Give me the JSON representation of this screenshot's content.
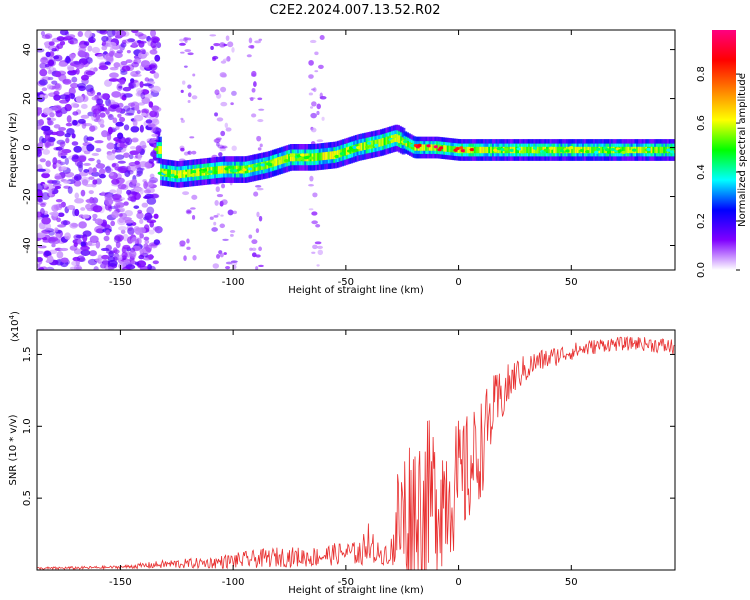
{
  "title": "C2E2.2024.007.13.52.R02",
  "chart_data": [
    {
      "type": "heatmap",
      "xlabel": "Height of straight line (km)",
      "ylabel": "Frequency (Hz)",
      "xlim": [
        -187,
        96
      ],
      "ylim": [
        -50,
        48
      ],
      "xticks": [
        -150,
        -100,
        -50,
        0,
        50
      ],
      "yticks": [
        -40,
        -20,
        0,
        20,
        40
      ],
      "colorbar": {
        "label": "Normalized spectral amplitude",
        "range": [
          0,
          0.98
        ],
        "ticks": [
          "0.0",
          "0.2",
          "0.4",
          "0.6",
          "0.8"
        ],
        "colors": [
          "#ffffff",
          "#8000ff",
          "#0000ff",
          "#00ffff",
          "#00ff00",
          "#ffff00",
          "#ff8000",
          "#ff0000",
          "#ff0080"
        ]
      },
      "noise_region_x": [
        -187,
        -133
      ],
      "ridge": {
        "x": [
          -133,
          -125,
          -115,
          -105,
          -95,
          -85,
          -75,
          -65,
          -55,
          -45,
          -35,
          -28,
          -20,
          -10,
          0,
          10,
          20,
          40,
          60,
          80,
          96
        ],
        "y": [
          -10,
          -11,
          -10,
          -9,
          -9,
          -7,
          -4,
          -4,
          -3,
          0,
          2,
          4,
          0,
          0,
          -1,
          -1,
          -1,
          -1,
          -1,
          -1,
          -1
        ]
      }
    },
    {
      "type": "line",
      "xlabel": "Height of straight line (km)",
      "ylabel": "SNR (10 * v/v)",
      "multiplier": "(x10^4)",
      "multiplier_base": "(x10",
      "multiplier_exp": "4",
      "multiplier_close": ")",
      "xlim": [
        -187,
        96
      ],
      "ylim": [
        0,
        1.67
      ],
      "xticks": [
        -150,
        -100,
        -50,
        0,
        50
      ],
      "yticks": [
        "0.5",
        "1.0",
        "1.5"
      ],
      "color": "#e83030",
      "envelope": {
        "x": [
          -187,
          -150,
          -130,
          -110,
          -95,
          -80,
          -65,
          -50,
          -40,
          -30,
          -28,
          -25,
          -20,
          -15,
          -10,
          -5,
          0,
          5,
          10,
          15,
          25,
          35,
          50,
          65,
          80,
          96
        ],
        "base": [
          0.01,
          0.02,
          0.04,
          0.05,
          0.07,
          0.09,
          0.09,
          0.12,
          0.11,
          0.12,
          0.3,
          0.35,
          0.4,
          0.45,
          0.5,
          0.55,
          0.6,
          0.7,
          0.85,
          1.1,
          1.35,
          1.45,
          1.52,
          1.57,
          1.58,
          1.55
        ],
        "noise": [
          0.01,
          0.01,
          0.03,
          0.04,
          0.06,
          0.07,
          0.07,
          0.08,
          0.08,
          0.08,
          0.4,
          0.55,
          0.6,
          0.6,
          0.55,
          0.5,
          0.45,
          0.4,
          0.35,
          0.25,
          0.12,
          0.08,
          0.06,
          0.05,
          0.05,
          0.06
        ]
      }
    }
  ]
}
